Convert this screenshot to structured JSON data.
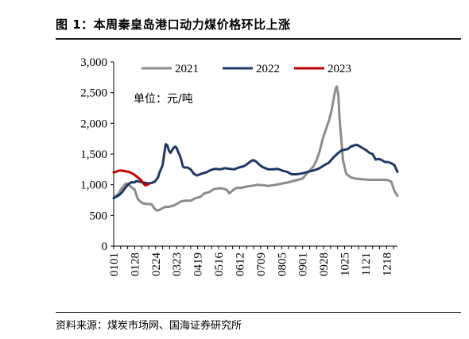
{
  "figure": {
    "title": "图 1：本周秦皇岛港口动力煤价格环比上涨",
    "source": "资料来源：煤炭市场网、国海证券研究所"
  },
  "chart_data": {
    "type": "line",
    "unit_label": "单位：元/吨",
    "ylim": [
      0,
      3000
    ],
    "yticks": [
      0,
      500,
      1000,
      1500,
      2000,
      2500,
      3000
    ],
    "ytick_labels": [
      "0",
      "500",
      "1,000",
      "1,500",
      "2,000",
      "2,500",
      "3,000"
    ],
    "x_range_days": [
      1,
      366
    ],
    "xtick_labels": [
      "0101",
      "0128",
      "0224",
      "0323",
      "0419",
      "0516",
      "0612",
      "0709",
      "0805",
      "0901",
      "0928",
      "1025",
      "1121",
      "1218"
    ],
    "xtick_days": [
      1,
      28,
      55,
      82,
      109,
      136,
      163,
      190,
      217,
      244,
      271,
      298,
      325,
      352
    ],
    "legend_position": "top",
    "grid": false,
    "series": [
      {
        "name": "2021",
        "color": "#8c8c8c",
        "x": [
          1,
          4,
          7,
          10,
          14,
          17,
          20,
          24,
          28,
          30,
          32,
          35,
          38,
          42,
          46,
          50,
          53,
          56,
          60,
          64,
          68,
          72,
          78,
          84,
          88,
          94,
          100,
          106,
          112,
          118,
          124,
          130,
          136,
          141,
          146,
          150,
          156,
          160,
          166,
          172,
          178,
          186,
          194,
          200,
          210,
          218,
          226,
          232,
          238,
          244,
          252,
          258,
          262,
          266,
          270,
          274,
          278,
          281,
          284,
          286,
          288,
          290,
          291,
          292,
          294,
          296,
          300,
          306,
          312,
          320,
          330,
          340,
          346,
          351,
          355,
          358,
          362,
          366
        ],
        "values": [
          780,
          820,
          850,
          920,
          980,
          1020,
          1000,
          960,
          920,
          840,
          770,
          730,
          700,
          690,
          685,
          680,
          620,
          580,
          590,
          620,
          640,
          640,
          660,
          700,
          730,
          740,
          740,
          780,
          800,
          860,
          880,
          930,
          940,
          940,
          920,
          860,
          930,
          950,
          950,
          970,
          980,
          1000,
          990,
          980,
          1000,
          1020,
          1040,
          1060,
          1080,
          1100,
          1220,
          1300,
          1400,
          1550,
          1750,
          1900,
          2050,
          2200,
          2400,
          2550,
          2600,
          2450,
          2200,
          2000,
          1700,
          1400,
          1180,
          1120,
          1100,
          1090,
          1080,
          1080,
          1080,
          1080,
          1070,
          1050,
          900,
          820
        ]
      },
      {
        "name": "2022",
        "color": "#1f3864",
        "x": [
          1,
          4,
          8,
          12,
          16,
          20,
          24,
          28,
          30,
          34,
          38,
          42,
          46,
          50,
          54,
          58,
          60,
          62,
          64,
          66,
          68,
          70,
          72,
          74,
          76,
          78,
          80,
          82,
          84,
          86,
          88,
          90,
          92,
          96,
          100,
          104,
          108,
          114,
          120,
          126,
          132,
          138,
          144,
          150,
          156,
          162,
          168,
          172,
          176,
          180,
          184,
          188,
          192,
          196,
          200,
          206,
          212,
          218,
          224,
          230,
          236,
          242,
          248,
          254,
          260,
          266,
          272,
          278,
          284,
          290,
          294,
          298,
          302,
          306,
          310,
          314,
          318,
          322,
          326,
          330,
          334,
          338,
          342,
          346,
          350,
          354,
          358,
          362,
          366
        ],
        "values": [
          780,
          800,
          830,
          880,
          950,
          1010,
          1040,
          1040,
          1060,
          1050,
          1040,
          1030,
          1020,
          1030,
          1050,
          1120,
          1200,
          1260,
          1320,
          1500,
          1660,
          1640,
          1560,
          1520,
          1560,
          1600,
          1620,
          1600,
          1530,
          1480,
          1400,
          1300,
          1280,
          1280,
          1250,
          1180,
          1150,
          1180,
          1200,
          1240,
          1260,
          1250,
          1270,
          1260,
          1250,
          1280,
          1300,
          1330,
          1370,
          1400,
          1380,
          1330,
          1290,
          1270,
          1250,
          1250,
          1260,
          1230,
          1210,
          1170,
          1170,
          1180,
          1200,
          1220,
          1240,
          1270,
          1320,
          1360,
          1450,
          1520,
          1560,
          1570,
          1580,
          1620,
          1640,
          1650,
          1620,
          1590,
          1560,
          1520,
          1500,
          1410,
          1420,
          1400,
          1370,
          1370,
          1350,
          1320,
          1210
        ]
      },
      {
        "name": "2023",
        "color": "#c00000",
        "x": [
          1,
          4,
          8,
          12,
          16,
          20,
          24,
          28,
          32,
          36,
          38,
          40,
          42,
          44,
          46
        ],
        "values": [
          1200,
          1210,
          1230,
          1230,
          1220,
          1210,
          1190,
          1160,
          1120,
          1080,
          1040,
          1010,
          990,
          1000,
          1010
        ]
      }
    ]
  }
}
